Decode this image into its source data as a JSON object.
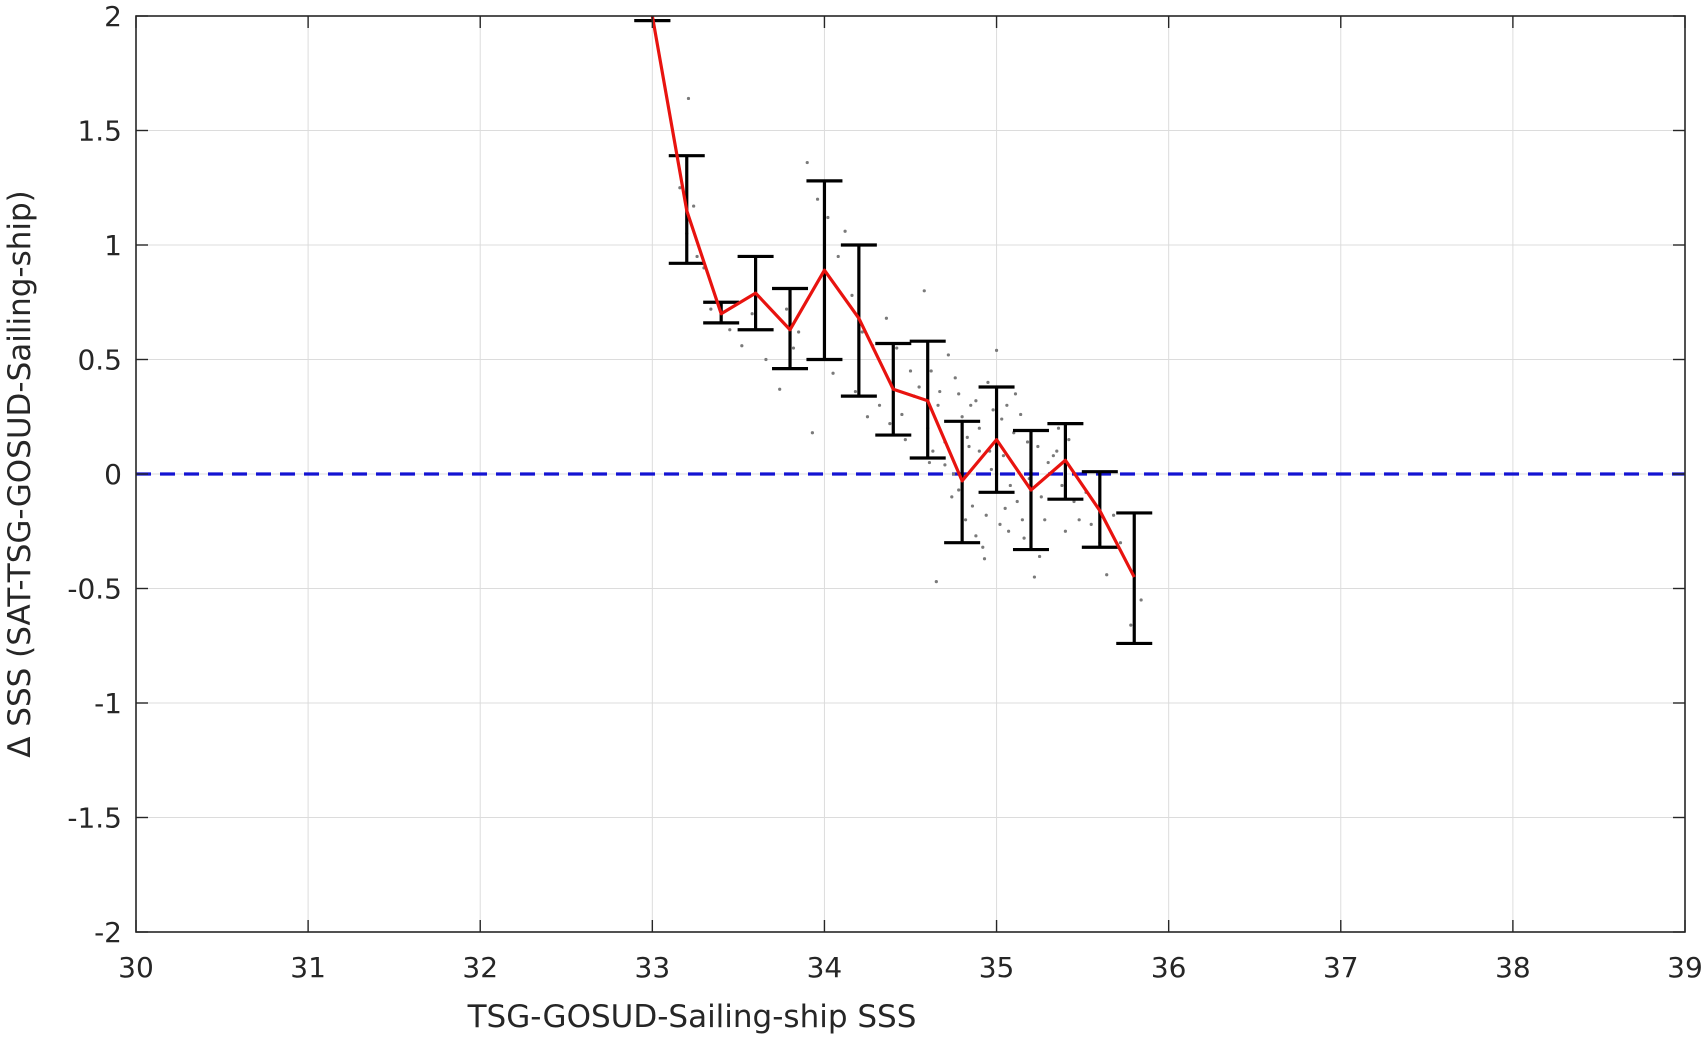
{
  "chart_data": {
    "type": "scatter",
    "title": "",
    "xlabel": "TSG-GOSUD-Sailing-ship SSS",
    "ylabel": "Δ SSS (SAT-TSG-GOSUD-Sailing-ship)",
    "xlim": [
      30,
      39
    ],
    "ylim": [
      -2,
      2
    ],
    "xticks": [
      30,
      31,
      32,
      33,
      34,
      35,
      36,
      37,
      38,
      39
    ],
    "yticks": [
      -2,
      -1.5,
      -1,
      -0.5,
      0,
      0.5,
      1,
      1.5,
      2
    ],
    "grid": true,
    "legend": "none",
    "reference_line": {
      "y": 0,
      "style": "dashed",
      "color": "#1414d2"
    },
    "series": [
      {
        "kind": "mean-line",
        "color": "#e8130f",
        "x": [
          33.0,
          33.2,
          33.4,
          33.6,
          33.8,
          34.0,
          34.2,
          34.4,
          34.6,
          34.8,
          35.0,
          35.2,
          35.4,
          35.6,
          35.8
        ],
        "y": [
          2.0,
          1.15,
          0.7,
          0.79,
          0.63,
          0.89,
          0.68,
          0.37,
          0.32,
          -0.03,
          0.15,
          -0.07,
          0.06,
          -0.16,
          -0.45
        ]
      },
      {
        "kind": "error-bars",
        "color": "#000000",
        "x": [
          33.0,
          33.2,
          33.4,
          33.6,
          33.8,
          34.0,
          34.2,
          34.4,
          34.6,
          34.8,
          35.0,
          35.2,
          35.4,
          35.6,
          35.8
        ],
        "lower": [
          1.98,
          0.92,
          0.66,
          0.63,
          0.46,
          0.5,
          0.34,
          0.17,
          0.07,
          -0.3,
          -0.08,
          -0.33,
          -0.11,
          -0.32,
          -0.74
        ],
        "upper": [
          1.98,
          1.39,
          0.75,
          0.95,
          0.81,
          1.28,
          1.0,
          0.57,
          0.58,
          0.23,
          0.38,
          0.19,
          0.22,
          0.01,
          -0.17
        ]
      },
      {
        "kind": "points",
        "color": "#7a7a7a",
        "x": [
          33.16,
          33.2,
          33.21,
          33.24,
          33.26,
          33.3,
          33.34,
          33.45,
          33.52,
          33.58,
          33.66,
          33.74,
          33.78,
          33.82,
          33.85,
          33.9,
          33.93,
          33.96,
          34.02,
          34.05,
          34.08,
          34.12,
          34.16,
          34.18,
          34.22,
          34.25,
          34.28,
          34.32,
          34.36,
          34.38,
          34.42,
          34.45,
          34.47,
          34.5,
          34.52,
          34.55,
          34.58,
          34.6,
          34.62,
          34.63,
          34.65,
          34.67,
          34.7,
          34.72,
          34.74,
          34.76,
          34.78,
          34.8,
          34.82,
          34.84,
          34.86,
          34.88,
          34.9,
          34.92,
          34.94,
          34.96,
          34.98,
          35.0,
          35.02,
          35.04,
          35.06,
          35.08,
          35.1,
          35.12,
          35.14,
          35.16,
          35.18,
          35.2,
          35.22,
          35.24,
          35.26,
          35.28,
          35.3,
          35.33,
          35.36,
          35.38,
          35.42,
          35.45,
          35.48,
          35.52,
          35.55,
          35.6,
          35.64,
          35.68,
          35.72,
          35.78,
          35.84,
          34.7,
          34.78,
          34.85,
          34.88,
          34.93,
          34.97,
          35.05,
          35.11,
          35.19,
          35.25,
          35.35,
          34.66,
          34.75,
          34.9,
          34.95,
          35.15,
          35.03,
          34.61,
          34.83,
          35.07,
          35.4
        ],
        "y": [
          1.25,
          1.05,
          1.64,
          1.17,
          0.95,
          0.9,
          0.72,
          0.63,
          0.56,
          0.7,
          0.5,
          0.37,
          0.72,
          0.55,
          0.62,
          1.36,
          0.18,
          1.2,
          1.12,
          0.44,
          0.95,
          1.06,
          0.78,
          0.36,
          0.62,
          0.25,
          0.56,
          0.3,
          0.68,
          0.22,
          0.55,
          0.26,
          0.15,
          0.45,
          0.34,
          0.38,
          0.8,
          0.2,
          0.45,
          0.1,
          -0.47,
          0.36,
          0.04,
          0.52,
          -0.1,
          0.42,
          0.35,
          0.25,
          -0.2,
          0.12,
          -0.14,
          0.32,
          0.2,
          -0.32,
          -0.18,
          0.1,
          0.28,
          0.54,
          -0.22,
          0.08,
          0.3,
          -0.05,
          0.18,
          -0.12,
          0.26,
          -0.28,
          0.14,
          0.02,
          -0.45,
          0.12,
          -0.1,
          -0.2,
          0.05,
          0.08,
          0.2,
          -0.05,
          0.15,
          -0.12,
          -0.2,
          -0.08,
          -0.22,
          -0.3,
          -0.44,
          -0.18,
          -0.3,
          -0.66,
          -0.55,
          0.14,
          -0.07,
          0.3,
          -0.27,
          -0.37,
          0.02,
          -0.15,
          0.35,
          -0.02,
          -0.36,
          0.1,
          0.3,
          0.0,
          0.1,
          0.4,
          -0.2,
          0.24,
          0.05,
          0.16,
          -0.25,
          -0.25
        ]
      }
    ]
  }
}
